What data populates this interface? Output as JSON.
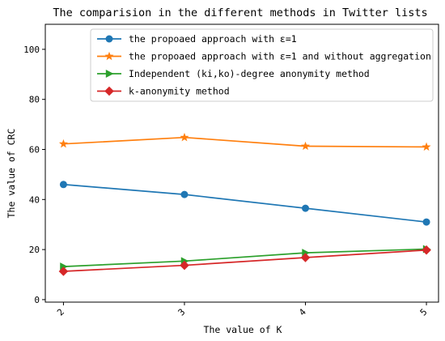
{
  "chart_data": {
    "type": "line",
    "title": "The comparision in the different methods in Twitter lists",
    "xlabel": "The value of K",
    "ylabel": "The value of CRC",
    "x": [
      2,
      3,
      4,
      5
    ],
    "xticks": [
      "2",
      "3",
      "4",
      "5"
    ],
    "xlim": [
      1.85,
      5.1
    ],
    "ylim": [
      -1,
      110
    ],
    "yticks": [
      0,
      20,
      40,
      60,
      80,
      100
    ],
    "grid": false,
    "legend_position": "top-right",
    "series": [
      {
        "name": "the propoaed approach with ε=1",
        "values": [
          46,
          42,
          36.5,
          31
        ],
        "color": "#1f77b4",
        "marker": "circle"
      },
      {
        "name": "the propoaed  approach with ε=1 and without aggregation",
        "values": [
          62.2,
          64.8,
          61.3,
          61
        ],
        "color": "#ff7f0e",
        "marker": "star"
      },
      {
        "name": "Independent (ki,ko)-degree anonymity method",
        "values": [
          13.2,
          15.4,
          18.7,
          20.2
        ],
        "color": "#2ca02c",
        "marker": "triangle-right"
      },
      {
        "name": "k-anonymity method",
        "values": [
          11.3,
          13.7,
          16.8,
          19.8
        ],
        "color": "#d62728",
        "marker": "diamond"
      }
    ]
  }
}
